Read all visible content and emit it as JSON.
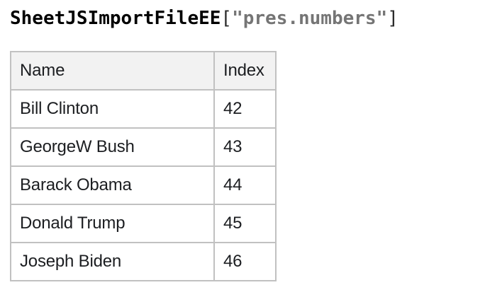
{
  "title": {
    "identifier": "SheetJSImportFileEE",
    "bracket_open": "[",
    "string": "\"pres.numbers\"",
    "bracket_close": "]"
  },
  "colors": {
    "title_identifier": "#000000",
    "title_bracket": "#2b2b2b",
    "title_string": "#757575",
    "table_text": "#1c1e21",
    "table_border": "#c1c1c1",
    "header_bg": "#f2f2f2",
    "page_bg": "#ffffff"
  },
  "table": {
    "columns": [
      {
        "label": "Name"
      },
      {
        "label": "Index"
      }
    ],
    "rows": [
      {
        "name": "Bill Clinton",
        "index": "42"
      },
      {
        "name": "GeorgeW Bush",
        "index": "43"
      },
      {
        "name": "Barack Obama",
        "index": "44"
      },
      {
        "name": "Donald Trump",
        "index": "45"
      },
      {
        "name": "Joseph Biden",
        "index": "46"
      }
    ]
  }
}
